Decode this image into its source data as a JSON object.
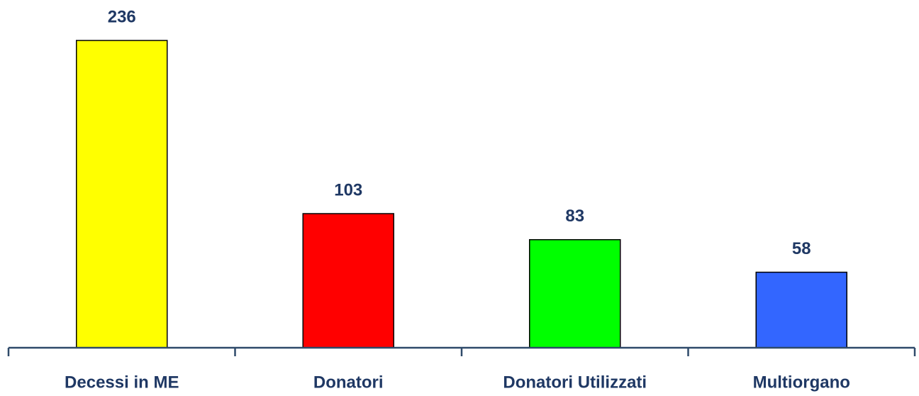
{
  "chart_data": {
    "type": "bar",
    "categories": [
      "Decessi in ME",
      "Donatori",
      "Donatori Utilizzati",
      "Multiorgano"
    ],
    "values": [
      236,
      103,
      83,
      58
    ],
    "colors": [
      "#ffff00",
      "#ff0000",
      "#00ff00",
      "#3366ff"
    ]
  }
}
